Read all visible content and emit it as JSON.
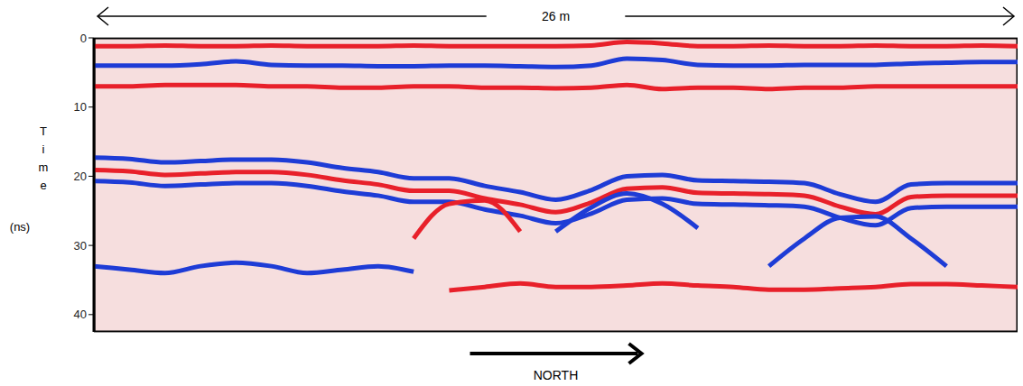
{
  "chart_data": {
    "type": "line",
    "xlabel": "26 m",
    "ylabel": "Time (ns)",
    "annotations": [
      "NORTH"
    ],
    "x": [
      0,
      1,
      2,
      3,
      4,
      5,
      6,
      7,
      8,
      9,
      10,
      11,
      12,
      13,
      14,
      15,
      16,
      17,
      18,
      19,
      20,
      21,
      22,
      23,
      24,
      25,
      26
    ],
    "xlim": [
      0,
      26
    ],
    "ylim": [
      0,
      42.5
    ],
    "yticks": [
      0,
      10,
      20,
      30,
      40
    ],
    "grid": true,
    "tick_labels": "y",
    "series": [
      {
        "color": "#e8202a",
        "line_style": "solid",
        "values": [
          1.2,
          1.2,
          1.1,
          1.2,
          1.2,
          1.1,
          1.2,
          1.2,
          1.2,
          1.1,
          1.2,
          1.2,
          1.2,
          1.2,
          1.1,
          0.6,
          0.8,
          1.2,
          1.2,
          1.1,
          1.2,
          1.2,
          1.1,
          1.2,
          1.2,
          1.1,
          1.2
        ]
      },
      {
        "color": "#1e3cd6",
        "line_style": "solid",
        "values": [
          4,
          4,
          4,
          3.8,
          3.4,
          3.9,
          4,
          4,
          4.1,
          4.1,
          4,
          4,
          4.1,
          4.2,
          4,
          3,
          3.2,
          3.9,
          4,
          4,
          3.9,
          3.9,
          3.9,
          3.7,
          3.6,
          3.5,
          3.5
        ]
      },
      {
        "color": "#e8202a",
        "line_style": "solid",
        "values": [
          7,
          7,
          6.8,
          6.8,
          6.8,
          7,
          7,
          7.2,
          7.2,
          7,
          7,
          7.2,
          7.2,
          7.3,
          7.2,
          6.8,
          7.4,
          7.2,
          7.2,
          7.4,
          7.2,
          7.2,
          7,
          7,
          7,
          7,
          7
        ]
      },
      {
        "color": "#1e3cd6",
        "line_style": "solid",
        "values": [
          17.3,
          17.5,
          18,
          17.8,
          17.6,
          17.6,
          18,
          18.8,
          19.4,
          20.3,
          20.3,
          21.4,
          22.3,
          23.4,
          22,
          20,
          19.8,
          20.6,
          20.7,
          20.8,
          21,
          22.6,
          23.7,
          21.2,
          21,
          21,
          21
        ]
      },
      {
        "color": "#e8202a",
        "line_style": "solid",
        "values": [
          19.1,
          19.3,
          19.8,
          19.6,
          19.4,
          19.4,
          19.8,
          20.6,
          21.2,
          22.1,
          22.1,
          23.2,
          24.1,
          25.2,
          23.8,
          21.8,
          21.6,
          22.4,
          22.5,
          22.6,
          22.8,
          24.4,
          25.5,
          23,
          22.8,
          22.8,
          22.8
        ]
      },
      {
        "color": "#1e3cd6",
        "line_style": "solid",
        "values": [
          20.7,
          20.9,
          21.4,
          21.2,
          21,
          21,
          21.4,
          22.2,
          22.8,
          23.7,
          23.7,
          24.8,
          25.7,
          26.8,
          25.4,
          23.4,
          23.2,
          24,
          24.1,
          24.2,
          24.4,
          26,
          27.1,
          24.6,
          24.4,
          24.4,
          24.4
        ]
      },
      {
        "color": "#e8202a",
        "line_style": "solid",
        "values": [
          null,
          null,
          null,
          null,
          null,
          null,
          null,
          null,
          null,
          29,
          24,
          23.5,
          28,
          null,
          null,
          null,
          null,
          null,
          null,
          null,
          null,
          null,
          null,
          null,
          null,
          null,
          null
        ]
      },
      {
        "color": "#1e3cd6",
        "line_style": "solid",
        "values": [
          null,
          null,
          null,
          null,
          null,
          null,
          null,
          null,
          null,
          null,
          null,
          null,
          null,
          28,
          24.5,
          22.5,
          24,
          27.5,
          null,
          null,
          null,
          null,
          null,
          null,
          null,
          null,
          null
        ]
      },
      {
        "color": "#1e3cd6",
        "line_style": "solid",
        "values": [
          null,
          null,
          null,
          null,
          null,
          null,
          null,
          null,
          null,
          null,
          null,
          null,
          null,
          null,
          null,
          null,
          null,
          null,
          null,
          33,
          29,
          26,
          25.8,
          29,
          33,
          null,
          null
        ]
      },
      {
        "color": "#e8202a",
        "line_style": "solid",
        "values": [
          null,
          null,
          null,
          null,
          null,
          null,
          null,
          null,
          null,
          null,
          36.5,
          36,
          35.5,
          36,
          36,
          35.8,
          35.5,
          35.8,
          36,
          36.4,
          36.4,
          36.2,
          36,
          35.6,
          35.6,
          35.8,
          36
        ]
      },
      {
        "color": "#1e3cd6",
        "line_style": "solid",
        "values": [
          33,
          33.5,
          34,
          33,
          32.5,
          33,
          34,
          33.5,
          33,
          33.8,
          null,
          null,
          null,
          null,
          null,
          null,
          null,
          null,
          null,
          null,
          null,
          null,
          null,
          null,
          null,
          null,
          null
        ]
      }
    ]
  }
}
